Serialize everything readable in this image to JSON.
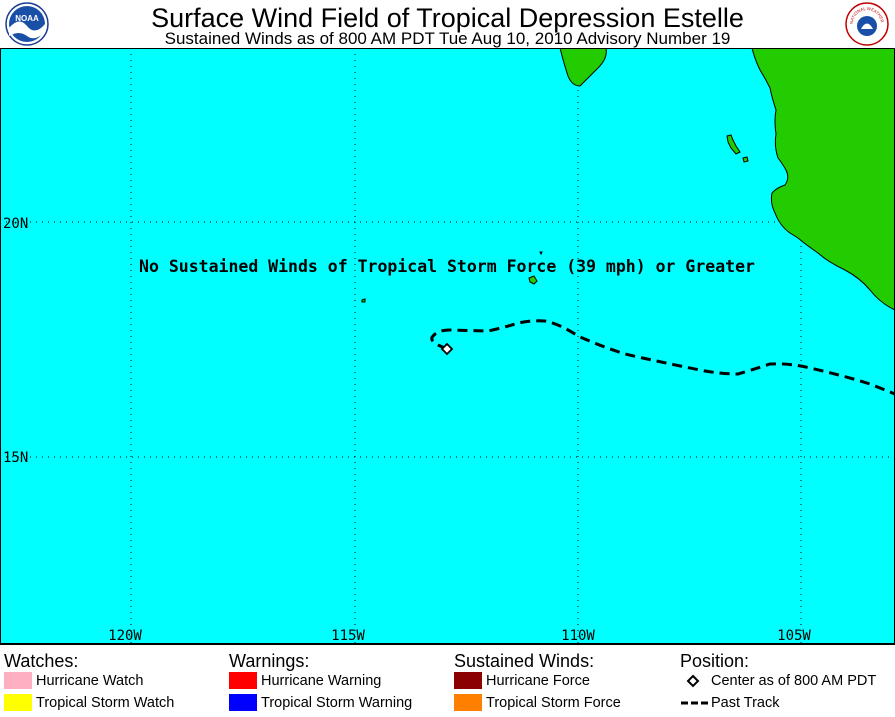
{
  "header": {
    "title": "Surface Wind Field of Tropical Depression Estelle",
    "subtitle": "Sustained Winds as of 800 AM PDT Tue Aug 10, 2010   Advisory Number 19",
    "logo_left": {
      "icon": "noaa-logo-icon",
      "text": "NOAA"
    },
    "logo_right": {
      "icon": "nws-logo-icon",
      "text": "NATIONAL WEATHER SERVICE"
    }
  },
  "map": {
    "ocean_color": "#00ffff",
    "land_color": "#22cc00",
    "lat_labels": [
      "20N",
      "15N"
    ],
    "lon_labels": [
      "120W",
      "115W",
      "110W",
      "105W"
    ],
    "notice": "No Sustained Winds of Tropical Storm Force (39 mph) or Greater",
    "storm_center": {
      "lat": 17.3,
      "lon": -112.7
    }
  },
  "legend": {
    "watches": {
      "heading": "Watches:",
      "items": [
        {
          "label": "Hurricane Watch",
          "color": "#ffb0c0"
        },
        {
          "label": "Tropical Storm Watch",
          "color": "#ffff00"
        }
      ]
    },
    "warnings": {
      "heading": "Warnings:",
      "items": [
        {
          "label": "Hurricane Warning",
          "color": "#ff0000"
        },
        {
          "label": "Tropical Storm Warning",
          "color": "#0000ff"
        }
      ]
    },
    "winds": {
      "heading": "Sustained Winds:",
      "items": [
        {
          "label": "Hurricane Force",
          "color": "#8b0000"
        },
        {
          "label": "Tropical Storm Force",
          "color": "#ff8000"
        }
      ]
    },
    "position": {
      "heading": "Position:",
      "items": [
        {
          "label": "Center as of 800 AM PDT",
          "icon": "diamond-icon"
        },
        {
          "label": "Past Track",
          "icon": "dashed-line-icon"
        }
      ]
    }
  }
}
